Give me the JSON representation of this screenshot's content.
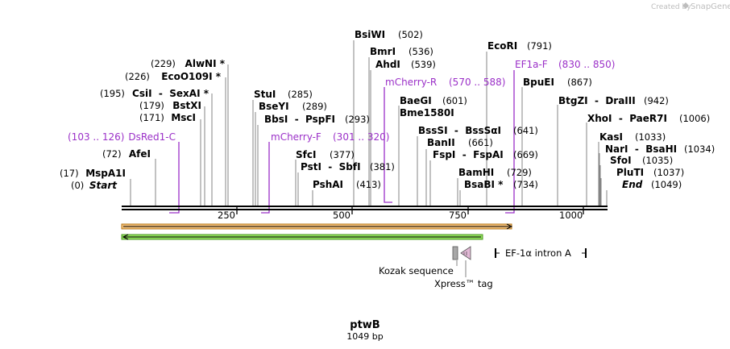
{
  "credit": {
    "prefix": "Created by",
    "brand": "SnapGene"
  },
  "plasmid": {
    "name": "ptwB",
    "length": "1049 bp",
    "length_bp": 1049
  },
  "sites": [
    {
      "name": "MspA1I",
      "pos": "(17)",
      "bp": 17
    },
    {
      "name": "Start",
      "pos": "(0)",
      "bp": 0,
      "italic": true
    },
    {
      "name": "AfeI",
      "pos": "(72)",
      "bp": 72
    },
    {
      "name": "MscI",
      "pos": "(171)",
      "bp": 171
    },
    {
      "name": "BstXI",
      "pos": "(179)",
      "bp": 179
    },
    {
      "name": "CsiI  -  SexAI *",
      "pos": "(195)",
      "bp": 195
    },
    {
      "name": "EcoO109I *",
      "pos": "(226)",
      "bp": 226
    },
    {
      "name": "AlwNI *",
      "pos": "(229)",
      "bp": 229
    },
    {
      "name": "StuI",
      "pos": "(285)",
      "bp": 285
    },
    {
      "name": "BseYI",
      "pos": "(289)",
      "bp": 289
    },
    {
      "name": "BbsI  -  PspFI",
      "pos": "(293)",
      "bp": 293
    },
    {
      "name": "SfcI",
      "pos": "(377)",
      "bp": 377
    },
    {
      "name": "PstI  -  SbfI",
      "pos": "(381)",
      "bp": 381
    },
    {
      "name": "PshAI",
      "pos": "(413)",
      "bp": 413
    },
    {
      "name": "BsiWI",
      "pos": "(502)",
      "bp": 502
    },
    {
      "name": "BmrI",
      "pos": "(536)",
      "bp": 536
    },
    {
      "name": "AhdI",
      "pos": "(539)",
      "bp": 539
    },
    {
      "name": "BaeGI",
      "pos": "(601)",
      "bp": 601
    },
    {
      "name": "Bme1580I",
      "pos": "",
      "bp": 601
    },
    {
      "name": "BssSI  -  BssSαI",
      "pos": "(641)",
      "bp": 641
    },
    {
      "name": "BanII",
      "pos": "(661)",
      "bp": 661
    },
    {
      "name": "FspI  -  FspAI",
      "pos": "(669)",
      "bp": 669
    },
    {
      "name": "BamHI",
      "pos": "(729)",
      "bp": 729
    },
    {
      "name": "BsaBI *",
      "pos": "(734)",
      "bp": 734
    },
    {
      "name": "EcoRI",
      "pos": "(791)",
      "bp": 791
    },
    {
      "name": "BpuEI",
      "pos": "(867)",
      "bp": 867
    },
    {
      "name": "BtgZI  -  DraIII",
      "pos": "(942)",
      "bp": 942
    },
    {
      "name": "XhoI  -  PaeR7I",
      "pos": "(1006)",
      "bp": 1006
    },
    {
      "name": "KasI",
      "pos": "(1033)",
      "bp": 1033
    },
    {
      "name": "NarI  -  BsaHI",
      "pos": "(1034)",
      "bp": 1034
    },
    {
      "name": "SfoI",
      "pos": "(1035)",
      "bp": 1035
    },
    {
      "name": "PluTI",
      "pos": "(1037)",
      "bp": 1037
    },
    {
      "name": "End",
      "pos": "(1049)",
      "bp": 1049,
      "italic": true
    }
  ],
  "primers": [
    {
      "name": "DsRed1-C",
      "range": "(103 .. 126)"
    },
    {
      "name": "mCherry-F",
      "range": "(301 .. 320)"
    },
    {
      "name": "mCherry-R",
      "range": "(570 .. 588)"
    },
    {
      "name": "EF1a-F",
      "range": "(830 .. 850)"
    }
  ],
  "ruler": {
    "ticks": [
      "250",
      "500",
      "750",
      "1000"
    ]
  },
  "features": [
    {
      "name": "Kozak sequence"
    },
    {
      "name": "Xpress™ tag"
    },
    {
      "name": "EF-1α intron A"
    }
  ],
  "colors": {
    "orange": "#f0a020",
    "green": "#55c02a",
    "primer": "#9b30c8",
    "grey": "#a8a8a8",
    "pink": "#d8a0c8"
  }
}
